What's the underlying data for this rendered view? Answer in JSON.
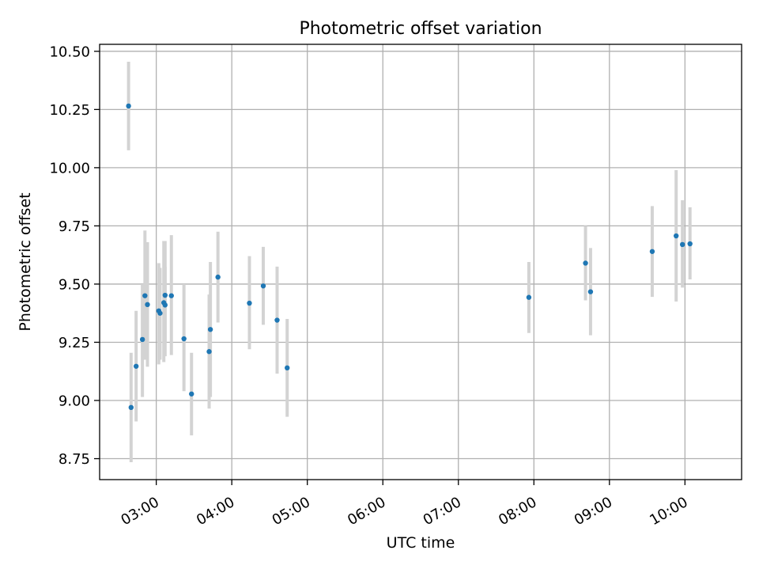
{
  "colors": {
    "point": "#1f77b4",
    "errorbar": "#d3d3d3",
    "grid": "#b0b0b0",
    "axis": "#000000"
  },
  "chart_data": {
    "type": "scatter",
    "title": "Photometric offset variation",
    "xlabel": "UTC time",
    "ylabel": "Photometric offset",
    "x_axis_kind": "time-of-day",
    "xlim": [
      "02:15",
      "10:45"
    ],
    "ylim": [
      8.66,
      10.53
    ],
    "x_ticks": [
      "03:00",
      "04:00",
      "05:00",
      "06:00",
      "07:00",
      "08:00",
      "09:00",
      "10:00"
    ],
    "y_ticks": [
      "8.75",
      "9.00",
      "9.25",
      "9.50",
      "9.75",
      "10.00",
      "10.25",
      "10.50"
    ],
    "grid": true,
    "legend": "none",
    "series": [
      {
        "marker": "point with vertical error bar",
        "points": [
          {
            "x": "02:38",
            "y": 10.265,
            "lo": 10.075,
            "hi": 10.455
          },
          {
            "x": "02:40",
            "y": 8.97,
            "lo": 8.735,
            "hi": 9.205
          },
          {
            "x": "02:44",
            "y": 9.147,
            "lo": 8.91,
            "hi": 9.385
          },
          {
            "x": "02:49",
            "y": 9.262,
            "lo": 9.015,
            "hi": 9.5
          },
          {
            "x": "02:51",
            "y": 9.45,
            "lo": 9.175,
            "hi": 9.73
          },
          {
            "x": "02:53",
            "y": 9.412,
            "lo": 9.145,
            "hi": 9.68
          },
          {
            "x": "03:02",
            "y": 9.385,
            "lo": 9.155,
            "hi": 9.59
          },
          {
            "x": "03:03",
            "y": 9.375,
            "lo": 9.175,
            "hi": 9.57
          },
          {
            "x": "03:06",
            "y": 9.42,
            "lo": 9.165,
            "hi": 9.685
          },
          {
            "x": "03:07",
            "y": 9.452,
            "lo": 9.19,
            "hi": 9.685
          },
          {
            "x": "03:07",
            "y": 9.41,
            "lo": 9.25,
            "hi": 9.575
          },
          {
            "x": "03:12",
            "y": 9.45,
            "lo": 9.195,
            "hi": 9.71
          },
          {
            "x": "03:22",
            "y": 9.265,
            "lo": 9.04,
            "hi": 9.5
          },
          {
            "x": "03:28",
            "y": 9.028,
            "lo": 8.85,
            "hi": 9.205
          },
          {
            "x": "03:42",
            "y": 9.21,
            "lo": 8.965,
            "hi": 9.455
          },
          {
            "x": "03:43",
            "y": 9.305,
            "lo": 9.015,
            "hi": 9.595
          },
          {
            "x": "03:49",
            "y": 9.53,
            "lo": 9.335,
            "hi": 9.725
          },
          {
            "x": "04:14",
            "y": 9.418,
            "lo": 9.22,
            "hi": 9.62
          },
          {
            "x": "04:25",
            "y": 9.492,
            "lo": 9.325,
            "hi": 9.66
          },
          {
            "x": "04:36",
            "y": 9.345,
            "lo": 9.115,
            "hi": 9.575
          },
          {
            "x": "04:44",
            "y": 9.14,
            "lo": 8.93,
            "hi": 9.35
          },
          {
            "x": "07:56",
            "y": 9.443,
            "lo": 9.29,
            "hi": 9.595
          },
          {
            "x": "08:41",
            "y": 9.59,
            "lo": 9.43,
            "hi": 9.75
          },
          {
            "x": "08:45",
            "y": 9.467,
            "lo": 9.28,
            "hi": 9.655
          },
          {
            "x": "09:34",
            "y": 9.64,
            "lo": 9.445,
            "hi": 9.835
          },
          {
            "x": "09:53",
            "y": 9.707,
            "lo": 9.425,
            "hi": 9.99
          },
          {
            "x": "09:58",
            "y": 9.67,
            "lo": 9.485,
            "hi": 9.86
          },
          {
            "x": "10:04",
            "y": 9.673,
            "lo": 9.52,
            "hi": 9.83
          }
        ]
      }
    ]
  }
}
